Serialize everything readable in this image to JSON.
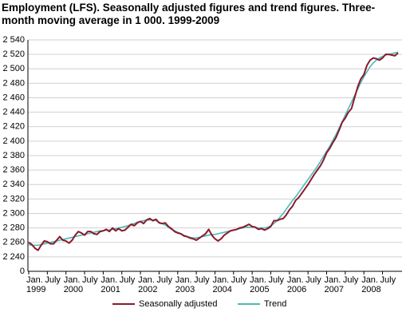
{
  "chart_data": {
    "type": "line",
    "title": "Employment (LFS). Seasonally adjusted figures and trend figures. Three-month moving average in 1 000. 1999-2009",
    "categories": [
      "Jan.\n1999",
      null,
      null,
      null,
      null,
      null,
      "July",
      null,
      null,
      null,
      null,
      null,
      "Jan.\n2000",
      null,
      null,
      null,
      null,
      null,
      "July",
      null,
      null,
      null,
      null,
      null,
      "Jan.\n2001",
      null,
      null,
      null,
      null,
      null,
      "July",
      null,
      null,
      null,
      null,
      null,
      "Jan.\n2002",
      null,
      null,
      null,
      null,
      null,
      "July",
      null,
      null,
      null,
      null,
      null,
      "Jan.\n2003",
      null,
      null,
      null,
      null,
      null,
      "July",
      null,
      null,
      null,
      null,
      null,
      "Jan.\n2004",
      null,
      null,
      null,
      null,
      null,
      "July",
      null,
      null,
      null,
      null,
      null,
      "Jan.\n2005",
      null,
      null,
      null,
      null,
      null,
      "July",
      null,
      null,
      null,
      null,
      null,
      "Jan.\n2006",
      null,
      null,
      null,
      null,
      null,
      "July",
      null,
      null,
      null,
      null,
      null,
      "Jan.\n2007",
      null,
      null,
      null,
      null,
      null,
      "July",
      null,
      null,
      null,
      null,
      null,
      "Jan.\n2008",
      null,
      null,
      null,
      null,
      null,
      "July",
      null,
      null,
      null,
      null,
      null
    ],
    "series": [
      {
        "name": "Seasonally adjusted",
        "color": "#8b1a2a",
        "values": [
          2260,
          2257,
          2252,
          2249,
          2256,
          2262,
          2261,
          2258,
          2258,
          2263,
          2268,
          2263,
          2262,
          2259,
          2263,
          2270,
          2275,
          2273,
          2270,
          2275,
          2275,
          2272,
          2271,
          2275,
          2276,
          2278,
          2275,
          2280,
          2276,
          2279,
          2276,
          2277,
          2281,
          2285,
          2283,
          2287,
          2289,
          2286,
          2291,
          2293,
          2290,
          2292,
          2287,
          2286,
          2287,
          2282,
          2279,
          2275,
          2273,
          2272,
          2269,
          2268,
          2266,
          2265,
          2263,
          2266,
          2269,
          2272,
          2278,
          2270,
          2265,
          2262,
          2265,
          2270,
          2273,
          2276,
          2277,
          2278,
          2280,
          2281,
          2283,
          2285,
          2282,
          2281,
          2278,
          2279,
          2277,
          2279,
          2282,
          2290,
          2290,
          2292,
          2293,
          2298,
          2305,
          2310,
          2318,
          2322,
          2328,
          2334,
          2340,
          2347,
          2354,
          2360,
          2366,
          2374,
          2384,
          2390,
          2398,
          2405,
          2415,
          2426,
          2432,
          2440,
          2445,
          2460,
          2475,
          2486,
          2492,
          2505,
          2512,
          2515,
          2514,
          2512,
          2515,
          2520,
          2520,
          2519,
          2518,
          2522
        ]
      },
      {
        "name": "Trend",
        "color": "#4cb8b8",
        "values": [
          2257,
          2256,
          2256,
          2256,
          2257,
          2258,
          2259,
          2260,
          2261,
          2262,
          2263,
          2264,
          2265,
          2266,
          2267,
          2268,
          2269,
          2270,
          2271,
          2272,
          2273,
          2274,
          2275,
          2276,
          2276,
          2277,
          2277,
          2278,
          2279,
          2280,
          2281,
          2282,
          2283,
          2285,
          2286,
          2288,
          2289,
          2290,
          2291,
          2291,
          2291,
          2290,
          2288,
          2286,
          2284,
          2281,
          2278,
          2276,
          2274,
          2272,
          2270,
          2268,
          2267,
          2266,
          2266,
          2267,
          2268,
          2269,
          2270,
          2271,
          2271,
          2272,
          2273,
          2274,
          2275,
          2276,
          2277,
          2278,
          2279,
          2280,
          2281,
          2281,
          2281,
          2281,
          2280,
          2280,
          2280,
          2281,
          2283,
          2286,
          2290,
          2295,
          2300,
          2306,
          2312,
          2318,
          2323,
          2329,
          2335,
          2341,
          2347,
          2353,
          2359,
          2365,
          2372,
          2379,
          2386,
          2393,
          2401,
          2409,
          2418,
          2427,
          2436,
          2445,
          2454,
          2463,
          2472,
          2481,
          2489,
          2496,
          2503,
          2508,
          2512,
          2515,
          2517,
          2519,
          2520,
          2521,
          2522,
          2523
        ]
      }
    ],
    "ylim": [
      0,
      2540
    ],
    "axis_break": true,
    "yticks": [
      0,
      {
        "value": 2240,
        "label": "2 240"
      },
      {
        "value": 2260,
        "label": "2 260"
      },
      {
        "value": 2280,
        "label": "2 280"
      },
      {
        "value": 2300,
        "label": "2 300"
      },
      {
        "value": 2320,
        "label": "2 320"
      },
      {
        "value": 2340,
        "label": "2 340"
      },
      {
        "value": 2360,
        "label": "2 360"
      },
      {
        "value": 2380,
        "label": "2 380"
      },
      {
        "value": 2400,
        "label": "2 400"
      },
      {
        "value": 2420,
        "label": "2 420"
      },
      {
        "value": 2440,
        "label": "2 440"
      },
      {
        "value": 2460,
        "label": "2 460"
      },
      {
        "value": 2480,
        "label": "2 480"
      },
      {
        "value": 2500,
        "label": "2 500"
      },
      {
        "value": 2520,
        "label": "2 520"
      },
      {
        "value": 2540,
        "label": "2 540"
      }
    ],
    "grid": true,
    "legend": "bottom"
  }
}
